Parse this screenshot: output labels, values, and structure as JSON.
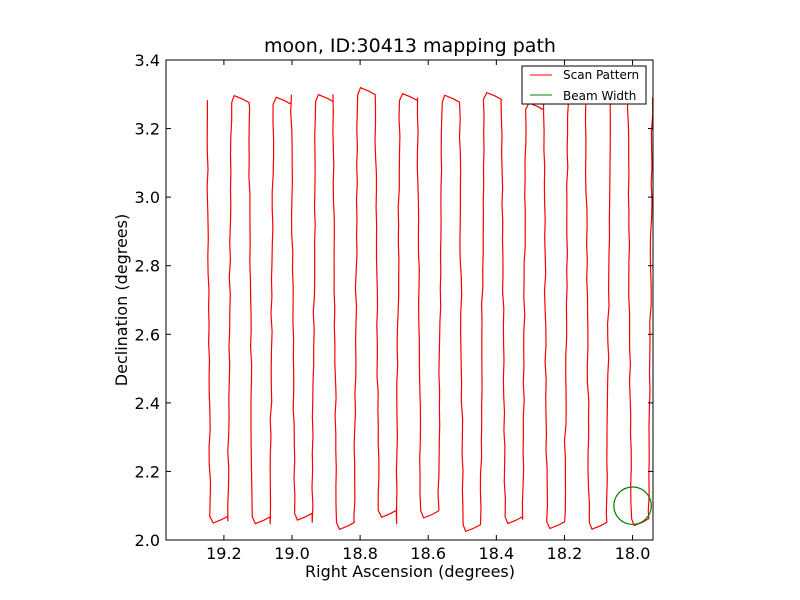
{
  "chart_data": {
    "type": "line",
    "title": "moon, ID:30413 mapping path",
    "xlabel": "Right Ascension (degrees)",
    "ylabel": "Declination (degrees)",
    "xlim": [
      19.37,
      17.94
    ],
    "ylim": [
      2.0,
      3.4
    ],
    "x_inverted": true,
    "x_ticks": [
      "19.2",
      "19.0",
      "18.8",
      "18.6",
      "18.4",
      "18.2",
      "18.0"
    ],
    "y_ticks": [
      "2.0",
      "2.2",
      "2.4",
      "2.6",
      "2.8",
      "3.0",
      "3.2",
      "3.4"
    ],
    "grid": false,
    "legend_position": "top-right",
    "series": [
      {
        "name": "Scan Pattern",
        "color": "#ff0000",
        "style": "raster scan, 22 vertical sweeps in declination between ~2.06 and ~3.29 deg, stepping from RA 19.25 down to ~17.94 deg",
        "x_start": 19.25,
        "x_step": -0.0618,
        "y_low": 2.08,
        "y_high": 3.28,
        "sweeps": 22
      },
      {
        "name": "Beam Width",
        "color": "#008000",
        "shape": "circle",
        "center": [
          18.0,
          2.1
        ],
        "radius_deg": 0.055
      }
    ]
  }
}
